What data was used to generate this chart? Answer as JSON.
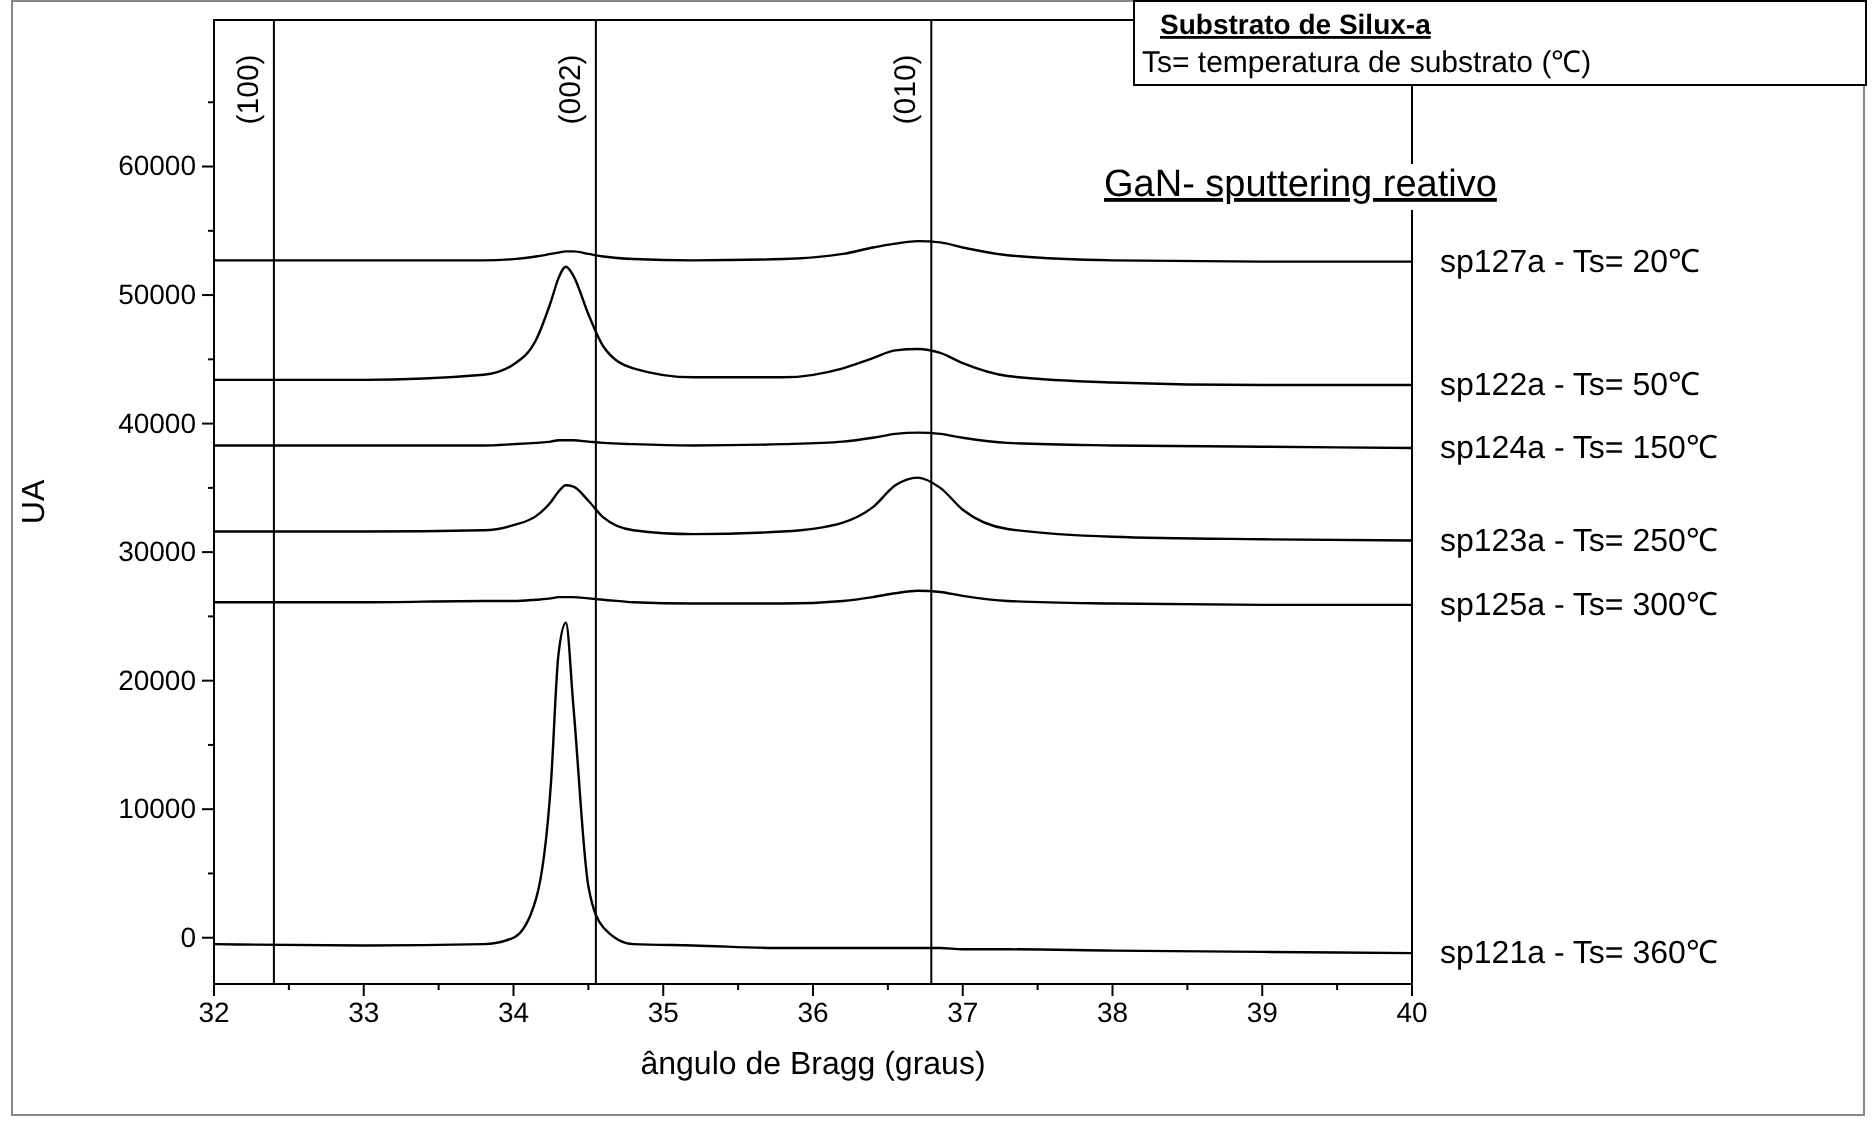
{
  "chart_data": {
    "type": "line",
    "xlabel": "ângulo de Bragg (graus)",
    "ylabel": "UA",
    "x": [
      32,
      33,
      33.8,
      34.0,
      34.15,
      34.25,
      34.3,
      34.35,
      34.4,
      34.5,
      34.6,
      34.8,
      35.2,
      35.8,
      36.2,
      36.4,
      36.55,
      36.7,
      36.85,
      37.0,
      37.3,
      38,
      39,
      40
    ],
    "series": [
      {
        "name": "sp127a - Ts= 20℃",
        "color": "#000000",
        "values": [
          52700,
          52700,
          52700,
          52800,
          53000,
          53200,
          53300,
          53400,
          53400,
          53200,
          53000,
          52800,
          52700,
          52800,
          53200,
          53700,
          54000,
          54200,
          54100,
          53700,
          53100,
          52700,
          52600,
          52600
        ]
      },
      {
        "name": "sp122a - Ts= 50℃",
        "color": "#000000",
        "values": [
          43400,
          43400,
          43800,
          44600,
          46500,
          49500,
          51300,
          52200,
          51500,
          48500,
          46000,
          44300,
          43600,
          43600,
          44300,
          45100,
          45700,
          45800,
          45500,
          44700,
          43700,
          43200,
          43000,
          43000
        ]
      },
      {
        "name": "sp124a - Ts= 150℃",
        "color": "#000000",
        "values": [
          38300,
          38300,
          38300,
          38400,
          38500,
          38600,
          38700,
          38700,
          38700,
          38600,
          38500,
          38400,
          38300,
          38400,
          38600,
          38900,
          39200,
          39300,
          39200,
          38900,
          38500,
          38300,
          38200,
          38100
        ]
      },
      {
        "name": "sp123a - Ts= 250℃",
        "color": "#000000",
        "values": [
          31600,
          31600,
          31700,
          32100,
          32800,
          33900,
          34700,
          35200,
          35100,
          34000,
          32700,
          31700,
          31400,
          31600,
          32300,
          33500,
          35200,
          35800,
          35000,
          33300,
          31800,
          31200,
          31000,
          30900
        ]
      },
      {
        "name": "sp125a - Ts= 300℃",
        "color": "#000000",
        "values": [
          26100,
          26100,
          26200,
          26200,
          26300,
          26400,
          26500,
          26500,
          26500,
          26400,
          26300,
          26100,
          26000,
          26000,
          26200,
          26500,
          26800,
          27000,
          26900,
          26600,
          26200,
          26000,
          25900,
          25900
        ]
      },
      {
        "name": "sp121a - Ts= 360℃",
        "color": "#000000",
        "values": [
          -500,
          -600,
          -500,
          0,
          3000,
          12000,
          22000,
          24500,
          18000,
          4000,
          800,
          -500,
          -600,
          -800,
          -800,
          -800,
          -800,
          -800,
          -800,
          -900,
          -900,
          -1000,
          -1100,
          -1200
        ]
      }
    ],
    "xlim": [
      32,
      40
    ],
    "xticks": [
      32,
      {
        "value": 32.5,
        "label": null
      },
      33,
      {
        "value": 33.5,
        "label": null
      },
      34,
      {
        "value": 34.5,
        "label": null
      },
      35,
      {
        "value": 35.5,
        "label": null
      },
      36,
      {
        "value": 36.5,
        "label": null
      },
      37,
      {
        "value": 37.5,
        "label": null
      },
      38,
      {
        "value": 38.5,
        "label": null
      },
      39,
      {
        "value": 39.5,
        "label": null
      },
      40
    ],
    "ylim": [
      -3600,
      71400
    ],
    "yticks": [
      0,
      {
        "value": 5000,
        "label": null
      },
      10000,
      {
        "value": 15000,
        "label": null
      },
      20000,
      {
        "value": 25000,
        "label": null
      },
      30000,
      {
        "value": 35000,
        "label": null
      },
      40000,
      {
        "value": 45000,
        "label": null
      },
      50000,
      {
        "value": 55000,
        "label": null
      },
      60000,
      {
        "value": 65000,
        "label": null
      }
    ],
    "ref_lines": [
      {
        "axis": "x",
        "value": 32.4,
        "color": "#000000"
      },
      {
        "axis": "x",
        "value": 34.55,
        "color": "#000000"
      },
      {
        "axis": "x",
        "value": 36.79,
        "color": "#000000"
      }
    ],
    "annotations": [
      {
        "text": "(100)",
        "x": 32.4,
        "y": 66000
      },
      {
        "text": "(002)",
        "x": 34.55,
        "y": 66000
      },
      {
        "text": "(010)",
        "x": 36.79,
        "y": 66000
      },
      "Substrato de Silux-a",
      "Ts= temperatura de substrato (℃)",
      "GaN- sputtering reativo"
    ],
    "grid": false,
    "marker": "none",
    "line_style": "solid"
  }
}
